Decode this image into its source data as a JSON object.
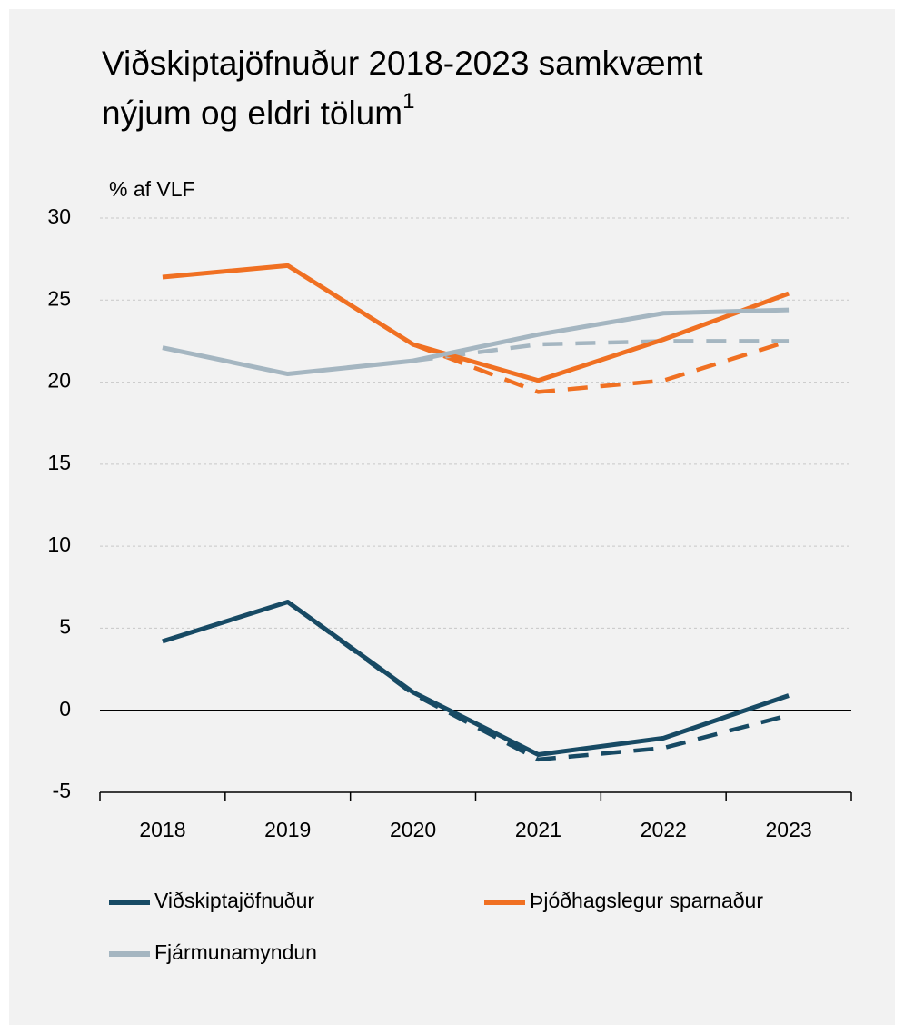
{
  "chart_data": {
    "type": "line",
    "title": [
      "Viðskiptajöfnuður 2018-2023 samkvæmt",
      "nýjum og eldri tölum"
    ],
    "title_footnote": "1",
    "y_label": "% af VLF",
    "categories": [
      "2018",
      "2019",
      "2020",
      "2021",
      "2022",
      "2023"
    ],
    "ylim": [
      -5,
      30
    ],
    "yticks": [
      -5,
      0,
      5,
      10,
      15,
      20,
      25,
      30
    ],
    "grid": true,
    "series": [
      {
        "name": "Viðskiptajöfnuður",
        "color": "#174a64",
        "values": [
          4.2,
          6.6,
          1.1,
          -2.7,
          -1.7,
          0.9
        ]
      },
      {
        "name": "Þjóðhagslegur sparnaður",
        "color": "#f07022",
        "values": [
          26.4,
          27.1,
          22.3,
          20.1,
          22.6,
          25.4
        ]
      },
      {
        "name": "Fjármunamyndun",
        "color": "#a5b6c1",
        "values": [
          22.1,
          20.5,
          21.3,
          22.9,
          24.2,
          24.4
        ]
      },
      {
        "color": "#174a64",
        "dashed": true,
        "values": [
          null,
          6.6,
          1.0,
          -3.0,
          -2.3,
          -0.3
        ]
      },
      {
        "color": "#f07022",
        "dashed": true,
        "values": [
          null,
          null,
          22.3,
          19.4,
          20.1,
          22.5
        ]
      },
      {
        "color": "#a5b6c1",
        "dashed": true,
        "values": [
          null,
          null,
          21.3,
          22.3,
          22.5,
          22.5
        ]
      }
    ]
  }
}
